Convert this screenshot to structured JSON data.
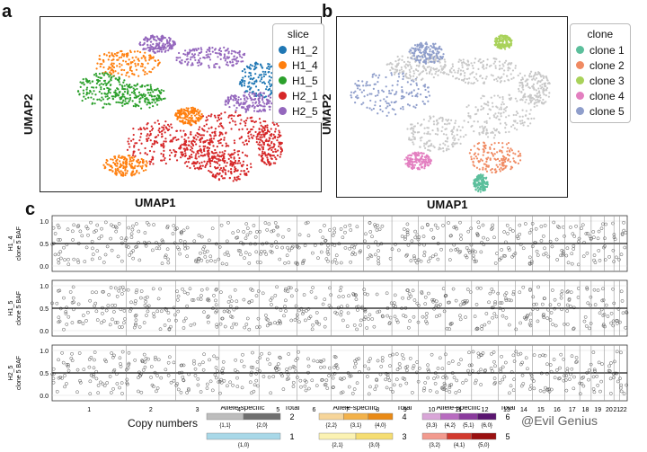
{
  "panels": {
    "a": {
      "letter": "a",
      "xlabel": "UMAP1",
      "ylabel": "UMAP2",
      "legend_title": "slice",
      "legend": [
        {
          "label": "H1_2",
          "color": "#1f77b4"
        },
        {
          "label": "H1_4",
          "color": "#ff7f0e"
        },
        {
          "label": "H1_5",
          "color": "#2ca02c"
        },
        {
          "label": "H2_1",
          "color": "#d62728"
        },
        {
          "label": "H2_5",
          "color": "#9467bd"
        }
      ]
    },
    "b": {
      "letter": "b",
      "xlabel": "UMAP1",
      "ylabel": "UMAP2",
      "legend_title": "clone",
      "legend": [
        {
          "label": "clone 1",
          "color": "#5cbf9c"
        },
        {
          "label": "clone 2",
          "color": "#f08a62"
        },
        {
          "label": "clone 3",
          "color": "#a9d25a"
        },
        {
          "label": "clone 4",
          "color": "#e37fc0"
        },
        {
          "label": "clone 5",
          "color": "#8f9ecb"
        }
      ]
    },
    "c": {
      "letter": "c",
      "tracks": [
        {
          "label": "H1_4\nclone 5 BAF"
        },
        {
          "label": "H1_5\nclone 5 BAF"
        },
        {
          "label": "H2_5\nclone 5 BAF"
        }
      ],
      "yticks": [
        "0.0",
        "0.5",
        "1.0"
      ],
      "chromosomes": [
        "1",
        "2",
        "3",
        "4",
        "5",
        "6",
        "7",
        "8",
        "9",
        "10",
        "11",
        "12",
        "13",
        "14",
        "15",
        "16",
        "17",
        "18",
        "19",
        "20",
        "21",
        "22"
      ]
    }
  },
  "copy_numbers": {
    "title": "Copy numbers",
    "header_allele": "Allele-specific",
    "header_total": "Total",
    "groups": [
      {
        "states": [
          "{1,1}",
          "{2,0}"
        ],
        "total": "2",
        "colors": [
          "#bdbdbd",
          "#6f6f6f"
        ]
      },
      {
        "states": [
          "{1,0}"
        ],
        "total": "1",
        "colors": [
          "#a8d8e8"
        ]
      },
      {
        "states": [
          "{2,2}",
          "{3,1}",
          "{4,0}"
        ],
        "total": "4",
        "colors": [
          "#f6d59a",
          "#f3b24a",
          "#e98a16"
        ]
      },
      {
        "states": [
          "{2,1}",
          "{3,0}"
        ],
        "total": "3",
        "colors": [
          "#fbf2b3",
          "#f5dd72"
        ]
      },
      {
        "states": [
          "{3,3}",
          "{4,2}",
          "{5,1}",
          "{6,0}"
        ],
        "total": "6",
        "colors": [
          "#d9a6d8",
          "#b86bc0",
          "#8b3b9e",
          "#5a1570"
        ]
      },
      {
        "states": [
          "{3,2}",
          "{4,1}",
          "{5,0}"
        ],
        "total": "5",
        "colors": [
          "#f29a8e",
          "#d23a2e",
          "#9a1010"
        ]
      }
    ]
  },
  "watermark": "@Evil Genius"
}
